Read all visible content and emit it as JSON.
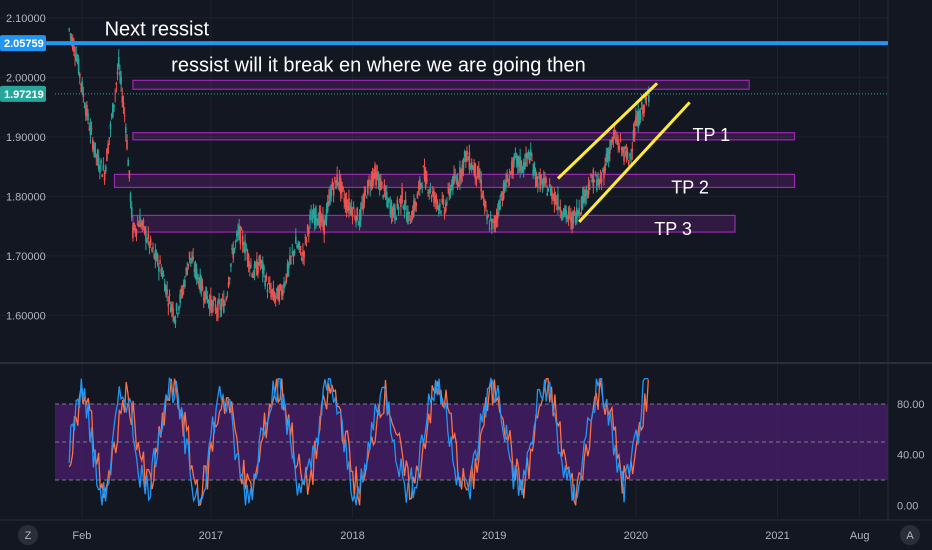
{
  "chart_data": {
    "type": "line",
    "colors": {
      "background": "#131722",
      "candle_up": "#26a69a",
      "candle_down": "#ef5350",
      "resistance_line": "#2196f3",
      "zone_fill": "#9c27b0",
      "channel": "#ffeb3b",
      "stoch_k": "#2196f3",
      "stoch_d": "#ff7043",
      "osc_band": "#4a1d6e"
    },
    "price_axis": {
      "ylim": [
        1.525,
        2.13
      ],
      "ticks": [
        "2.10000",
        "2.00000",
        "1.90000",
        "1.80000",
        "1.70000",
        "1.60000"
      ],
      "tick_values": [
        2.1,
        2.0,
        1.9,
        1.8,
        1.7,
        1.6
      ]
    },
    "x_axis": {
      "ticks": [
        "Feb",
        "2017",
        "2018",
        "2019",
        "2020",
        "2021",
        "Aug"
      ],
      "tick_values": [
        2016.09,
        2017.0,
        2018.0,
        2019.0,
        2020.0,
        2021.0,
        2021.58
      ],
      "xlim": [
        2015.9,
        2021.78
      ]
    },
    "price_series": {
      "x": [
        2016.0,
        2016.05,
        2016.1,
        2016.15,
        2016.2,
        2016.25,
        2016.3,
        2016.35,
        2016.4,
        2016.45,
        2016.5,
        2016.55,
        2016.6,
        2016.65,
        2016.7,
        2016.75,
        2016.8,
        2016.85,
        2016.9,
        2016.95,
        2017.0,
        2017.05,
        2017.1,
        2017.15,
        2017.2,
        2017.25,
        2017.3,
        2017.35,
        2017.4,
        2017.45,
        2017.5,
        2017.55,
        2017.6,
        2017.65,
        2017.7,
        2017.75,
        2017.8,
        2017.85,
        2017.9,
        2017.95,
        2018.0,
        2018.05,
        2018.1,
        2018.15,
        2018.2,
        2018.25,
        2018.3,
        2018.35,
        2018.4,
        2018.45,
        2018.5,
        2018.55,
        2018.6,
        2018.65,
        2018.7,
        2018.75,
        2018.8,
        2018.85,
        2018.9,
        2018.95,
        2019.0,
        2019.05,
        2019.1,
        2019.15,
        2019.2,
        2019.25,
        2019.3,
        2019.35,
        2019.4,
        2019.45,
        2019.5,
        2019.55,
        2019.6,
        2019.65,
        2019.7,
        2019.75,
        2019.8,
        2019.85,
        2019.9,
        2019.95,
        2020.0,
        2020.05,
        2020.1
      ],
      "y": [
        2.08,
        2.04,
        1.97,
        1.91,
        1.86,
        1.84,
        1.93,
        2.02,
        1.92,
        1.74,
        1.76,
        1.73,
        1.7,
        1.68,
        1.63,
        1.6,
        1.64,
        1.7,
        1.67,
        1.64,
        1.62,
        1.61,
        1.62,
        1.7,
        1.74,
        1.71,
        1.67,
        1.69,
        1.65,
        1.63,
        1.64,
        1.68,
        1.72,
        1.7,
        1.76,
        1.77,
        1.75,
        1.81,
        1.83,
        1.79,
        1.78,
        1.76,
        1.81,
        1.84,
        1.82,
        1.79,
        1.77,
        1.8,
        1.76,
        1.79,
        1.84,
        1.81,
        1.79,
        1.78,
        1.82,
        1.83,
        1.87,
        1.85,
        1.83,
        1.76,
        1.75,
        1.8,
        1.83,
        1.86,
        1.85,
        1.87,
        1.83,
        1.82,
        1.81,
        1.79,
        1.77,
        1.76,
        1.78,
        1.81,
        1.83,
        1.82,
        1.87,
        1.9,
        1.88,
        1.86,
        1.92,
        1.95,
        1.97
      ]
    },
    "resistance": {
      "value": 2.05759,
      "label": "2.05759",
      "color": "#2196f3"
    },
    "current_price": {
      "value": 1.97219,
      "label": "1.97219",
      "color": "#26a69a"
    },
    "zones": [
      {
        "name": "zone-top",
        "x0": 2016.45,
        "x1": 2020.8,
        "y0": 1.98,
        "y1": 1.995
      },
      {
        "name": "zone-tp1",
        "x0": 2016.45,
        "x1": 2021.12,
        "y0": 1.895,
        "y1": 1.907
      },
      {
        "name": "zone-tp2",
        "x0": 2016.32,
        "x1": 2021.12,
        "y0": 1.815,
        "y1": 1.837
      },
      {
        "name": "zone-tp3",
        "x0": 2016.45,
        "x1": 2020.7,
        "y0": 1.74,
        "y1": 1.768
      }
    ],
    "channel_lines": [
      {
        "x0": 2019.45,
        "y0": 1.83,
        "x1": 2020.15,
        "y1": 1.99
      },
      {
        "x0": 2019.6,
        "y0": 1.757,
        "x1": 2020.38,
        "y1": 1.958
      }
    ],
    "annotations": [
      {
        "text": "Next ressist",
        "x": 2016.25,
        "y": 2.07,
        "size": "large"
      },
      {
        "text": "ressist will it break  en where we are going then",
        "x": 2016.72,
        "y": 2.01,
        "size": "large"
      },
      {
        "text": "TP 1",
        "x": 2020.4,
        "y": 1.893,
        "size": "small"
      },
      {
        "text": "TP 2",
        "x": 2020.25,
        "y": 1.805,
        "size": "small"
      },
      {
        "text": "TP 3",
        "x": 2020.13,
        "y": 1.735,
        "size": "small"
      }
    ],
    "oscillator": {
      "ylim": [
        -10,
        110
      ],
      "ticks": [
        "80.00",
        "40.00",
        "0.00"
      ],
      "tick_values": [
        80,
        40,
        0
      ],
      "band": [
        20,
        80
      ],
      "k_values": [
        45,
        80,
        95,
        60,
        20,
        5,
        30,
        75,
        92,
        70,
        35,
        10,
        25,
        60,
        88,
        95,
        72,
        40,
        12,
        8,
        35,
        70,
        90,
        78,
        45,
        18,
        6,
        28,
        65,
        85,
        96,
        80,
        50,
        22,
        10,
        30,
        62,
        88,
        94,
        70,
        40,
        15,
        8,
        32,
        68,
        90,
        82,
        55,
        25,
        12,
        20,
        50,
        80,
        95,
        85,
        60,
        30,
        10,
        15,
        45,
        78,
        92,
        88,
        60,
        30,
        12,
        24,
        55,
        85,
        96,
        75,
        42,
        18,
        6,
        28,
        62,
        86,
        94,
        72,
        38,
        14,
        20,
        52,
        84,
        96
      ],
      "d_values": [
        40,
        70,
        88,
        72,
        35,
        12,
        20,
        60,
        85,
        78,
        50,
        20,
        18,
        48,
        80,
        92,
        80,
        55,
        22,
        10,
        25,
        58,
        84,
        82,
        58,
        28,
        10,
        20,
        52,
        80,
        92,
        86,
        62,
        32,
        14,
        22,
        52,
        80,
        92,
        78,
        52,
        25,
        10,
        25,
        55,
        84,
        86,
        65,
        36,
        16,
        16,
        40,
        72,
        90,
        88,
        70,
        40,
        16,
        12,
        35,
        68,
        88,
        90,
        70,
        40,
        18,
        18,
        45,
        78,
        92,
        82,
        55,
        28,
        10,
        20,
        52,
        80,
        92,
        80,
        50,
        22,
        16,
        42,
        75,
        92
      ]
    }
  }
}
